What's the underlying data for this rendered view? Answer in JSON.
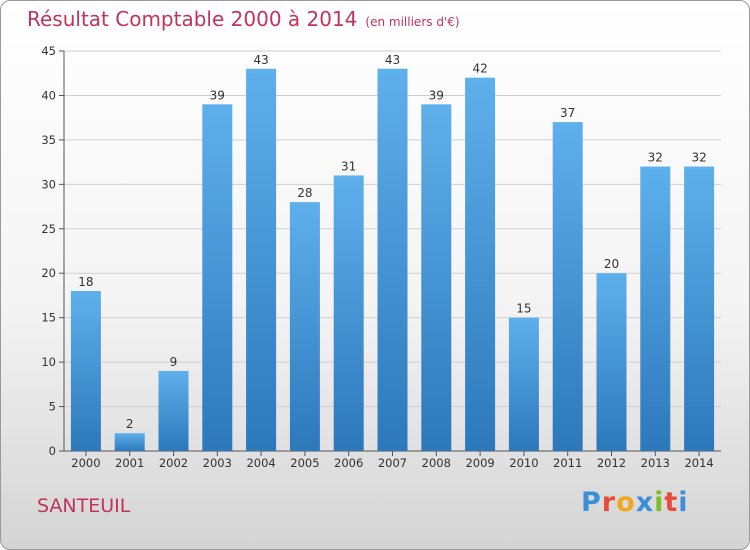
{
  "header": {
    "title": "Résultat Comptable 2000 à 2014",
    "unit": "(en milliers d'€)"
  },
  "footer": {
    "place": "SANTEUIL",
    "logo_letters": [
      "P",
      "r",
      "o",
      "x",
      "i",
      "t",
      "i"
    ],
    "logo_colors": [
      "#3b8fd9",
      "#e94a3a",
      "#f0a81e",
      "#3b8fd9",
      "#7cbd2a",
      "#e94a3a",
      "#3b8fd9"
    ]
  },
  "colors": {
    "bar_light": "#5eb0ec",
    "bar_dark": "#2c78bb",
    "title": "#c0335f",
    "grid": "#cfcfcf"
  },
  "chart_data": {
    "type": "bar",
    "title": "Résultat Comptable 2000 à 2014",
    "subtitle": "(en milliers d'€)",
    "xlabel": "",
    "ylabel": "",
    "categories": [
      "2000",
      "2001",
      "2002",
      "2003",
      "2004",
      "2005",
      "2006",
      "2007",
      "2008",
      "2009",
      "2010",
      "2011",
      "2012",
      "2013",
      "2014"
    ],
    "values": [
      18,
      2,
      9,
      39,
      43,
      28,
      31,
      43,
      39,
      42,
      15,
      37,
      20,
      32,
      32
    ],
    "ylim": [
      0,
      45
    ],
    "yticks": [
      0,
      5,
      10,
      15,
      20,
      25,
      30,
      35,
      40,
      45
    ],
    "grid": true,
    "data_labels": true
  }
}
